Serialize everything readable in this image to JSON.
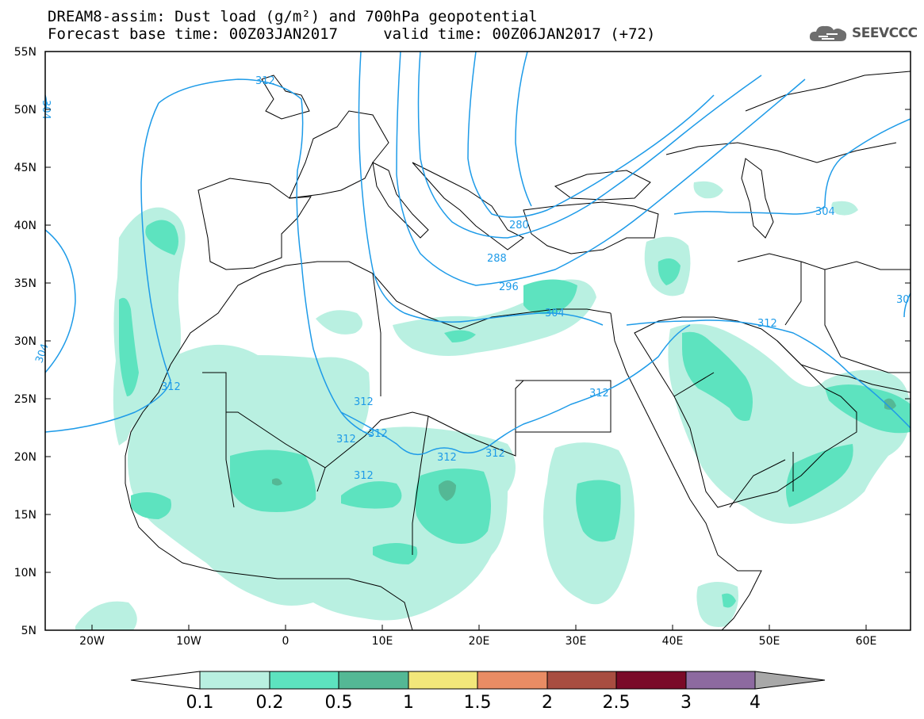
{
  "header": {
    "title_line1": "DREAM8-assim: Dust load (g/m²) and 700hPa geopotential",
    "title_line2": "Forecast base time: 00Z03JAN2017     valid time: 00Z06JAN2017 (+72)"
  },
  "logo": {
    "text": "SEEVCCC",
    "icon": "cloud-icon"
  },
  "map": {
    "lat_labels": [
      "55N",
      "50N",
      "45N",
      "40N",
      "35N",
      "30N",
      "25N",
      "20N",
      "15N",
      "10N",
      "5N"
    ],
    "lon_labels": [
      "20W",
      "10W",
      "0",
      "10E",
      "20E",
      "30E",
      "40E",
      "50E",
      "60E"
    ],
    "contour_labels": [
      {
        "id": "c312-top",
        "text": "312"
      },
      {
        "id": "c304-tl",
        "text": "304"
      },
      {
        "id": "c304-l",
        "text": "304"
      },
      {
        "id": "c288",
        "text": "288"
      },
      {
        "id": "c280",
        "text": "280"
      },
      {
        "id": "c296",
        "text": "296"
      },
      {
        "id": "c304-eg",
        "text": "304"
      },
      {
        "id": "c304-casp",
        "text": "304"
      },
      {
        "id": "c312-me",
        "text": "312"
      },
      {
        "id": "c312-eg",
        "text": "312"
      },
      {
        "id": "c312-ma",
        "text": "312"
      },
      {
        "id": "c312-sah1",
        "text": "312"
      },
      {
        "id": "c312-sah2",
        "text": "312"
      },
      {
        "id": "c312-sah3",
        "text": "312"
      },
      {
        "id": "c312-sah4",
        "text": "312"
      },
      {
        "id": "c312-ch",
        "text": "312"
      },
      {
        "id": "c312-lb",
        "text": "312"
      },
      {
        "id": "c30-r",
        "text": "30"
      }
    ]
  },
  "colorbar": {
    "colors": [
      "#b9f0e1",
      "#5de3bf",
      "#54b895",
      "#f2e77a",
      "#e98c64",
      "#a84d40",
      "#7a0a28",
      "#8d6aa0"
    ],
    "under_color": "#ffffff",
    "over_color": "#a8a8a8",
    "labels": [
      "0.1",
      "0.2",
      "0.5",
      "1",
      "1.5",
      "2",
      "2.5",
      "3",
      "4"
    ]
  },
  "colors": {
    "contour": "#1e9be8",
    "light_dust": "#b9f0e1",
    "medium_dust": "#5de3bf",
    "heavy_dust": "#54b895"
  }
}
